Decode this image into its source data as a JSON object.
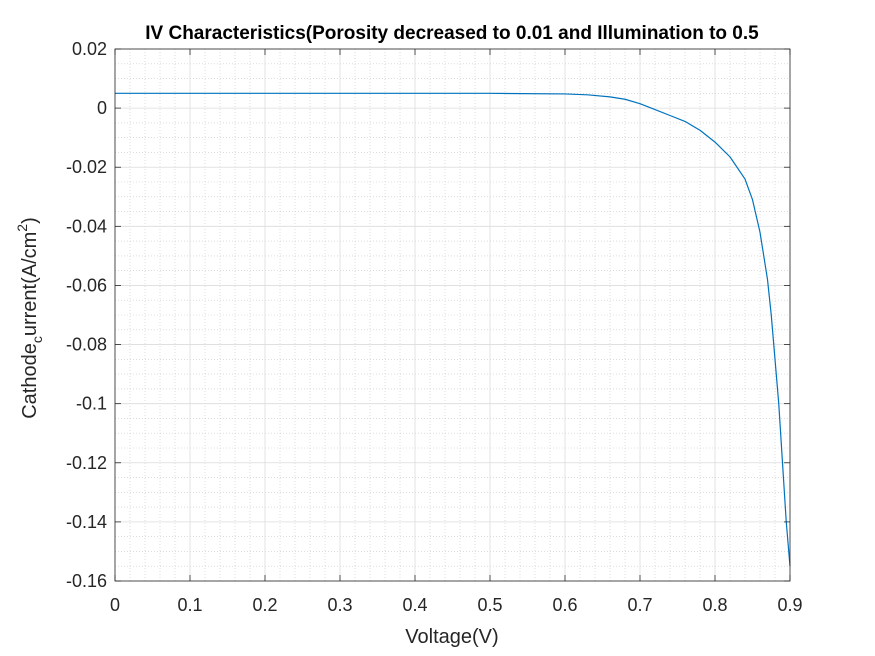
{
  "chart_data": {
    "type": "line",
    "title": "IV Characteristics(Porosity decreased to 0.01 and Illumination to 0.5",
    "xlabel": "Voltage(V)",
    "ylabel": {
      "prefix": "Cathode",
      "sub": "c",
      "middle": "urrent(A/cm",
      "sup": "2",
      "suffix": ")"
    },
    "xlim": [
      0,
      0.9
    ],
    "ylim": [
      -0.16,
      0.02
    ],
    "x_ticks": [
      0,
      0.1,
      0.2,
      0.3,
      0.4,
      0.5,
      0.6,
      0.7,
      0.8,
      0.9
    ],
    "x_tick_labels": [
      "0",
      "0.1",
      "0.2",
      "0.3",
      "0.4",
      "0.5",
      "0.6",
      "0.7",
      "0.8",
      "0.9"
    ],
    "y_ticks": [
      0.02,
      0,
      -0.02,
      -0.04,
      -0.06,
      -0.08,
      -0.1,
      -0.12,
      -0.14,
      -0.16
    ],
    "y_tick_labels": [
      "0.02",
      "0",
      "-0.02",
      "-0.04",
      "-0.06",
      "-0.08",
      "-0.1",
      "-0.12",
      "-0.14",
      "-0.16"
    ],
    "grid": true,
    "minor_grid": true,
    "series_color": "#0072BD",
    "x": [
      0,
      0.1,
      0.2,
      0.3,
      0.4,
      0.5,
      0.6,
      0.63,
      0.66,
      0.68,
      0.7,
      0.72,
      0.74,
      0.76,
      0.78,
      0.8,
      0.82,
      0.84,
      0.85,
      0.86,
      0.87,
      0.875,
      0.88,
      0.885,
      0.89,
      0.895,
      0.9
    ],
    "y": [
      0.005,
      0.005,
      0.005,
      0.005,
      0.005,
      0.005,
      0.0048,
      0.0045,
      0.0038,
      0.003,
      0.0015,
      -0.0005,
      -0.0025,
      -0.0045,
      -0.0075,
      -0.0115,
      -0.0165,
      -0.024,
      -0.031,
      -0.042,
      -0.058,
      -0.07,
      -0.085,
      -0.1,
      -0.12,
      -0.14,
      -0.155
    ]
  }
}
